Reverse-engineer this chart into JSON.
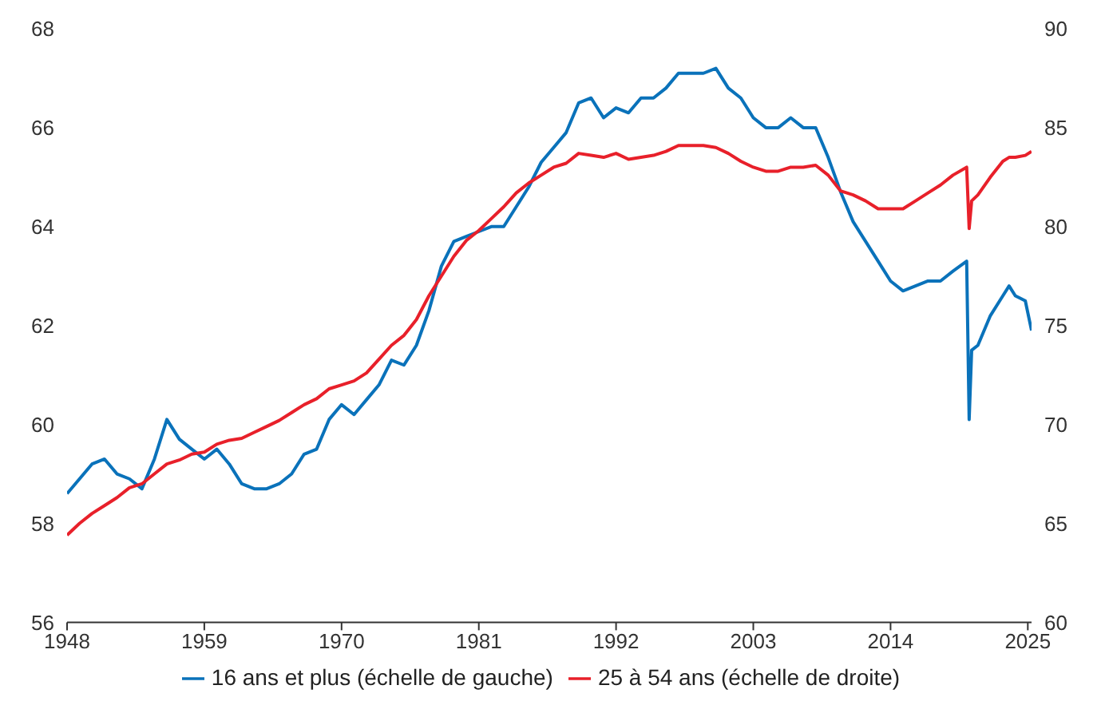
{
  "chart_data": {
    "type": "line",
    "x": [
      1948,
      1949,
      1950,
      1951,
      1952,
      1953,
      1954,
      1955,
      1956,
      1957,
      1958,
      1959,
      1960,
      1961,
      1962,
      1963,
      1964,
      1965,
      1966,
      1967,
      1968,
      1969,
      1970,
      1971,
      1972,
      1973,
      1974,
      1975,
      1976,
      1977,
      1978,
      1979,
      1980,
      1981,
      1982,
      1983,
      1984,
      1985,
      1986,
      1987,
      1988,
      1989,
      1990,
      1991,
      1992,
      1993,
      1994,
      1995,
      1996,
      1997,
      1998,
      1999,
      2000,
      2001,
      2002,
      2003,
      2004,
      2005,
      2006,
      2007,
      2008,
      2009,
      2010,
      2011,
      2012,
      2013,
      2014,
      2015,
      2016,
      2017,
      2018,
      2019,
      2020.1,
      2020.3,
      2020.5,
      2021,
      2022,
      2023,
      2023.5,
      2024,
      2024.8,
      2025.3
    ],
    "series": [
      {
        "name": "16 ans et plus (échelle de gauche)",
        "color": "#0a72ba",
        "values": [
          58.6,
          58.9,
          59.2,
          59.3,
          59.0,
          58.9,
          58.7,
          59.3,
          60.1,
          59.7,
          59.5,
          59.3,
          59.5,
          59.2,
          58.8,
          58.7,
          58.7,
          58.8,
          59.0,
          59.4,
          59.5,
          60.1,
          60.4,
          60.2,
          60.5,
          60.8,
          61.3,
          61.2,
          61.6,
          62.3,
          63.2,
          63.7,
          63.8,
          63.9,
          64.0,
          64.0,
          64.4,
          64.8,
          65.3,
          65.6,
          65.9,
          66.5,
          66.6,
          66.2,
          66.4,
          66.3,
          66.6,
          66.6,
          66.8,
          67.1,
          67.1,
          67.1,
          67.2,
          66.8,
          66.6,
          66.2,
          66.0,
          66.0,
          66.2,
          66.0,
          66.0,
          65.4,
          64.7,
          64.1,
          63.7,
          63.3,
          62.9,
          62.7,
          62.8,
          62.9,
          62.9,
          63.1,
          63.3,
          60.1,
          61.5,
          61.6,
          62.2,
          62.6,
          62.8,
          62.6,
          62.5,
          61.9
        ]
      },
      {
        "name": "25 à 54 ans (échelle de droite)",
        "color": "#e8202a",
        "axis": "y2",
        "values": [
          64.4,
          65.0,
          65.5,
          65.9,
          66.3,
          66.8,
          67.0,
          67.5,
          68.0,
          68.2,
          68.5,
          68.6,
          69.0,
          69.2,
          69.3,
          69.6,
          69.9,
          70.2,
          70.6,
          71.0,
          71.3,
          71.8,
          72.0,
          72.2,
          72.6,
          73.3,
          74.0,
          74.5,
          75.3,
          76.5,
          77.5,
          78.5,
          79.3,
          79.8,
          80.4,
          81.0,
          81.7,
          82.2,
          82.6,
          83.0,
          83.2,
          83.7,
          83.6,
          83.5,
          83.7,
          83.4,
          83.5,
          83.6,
          83.8,
          84.1,
          84.1,
          84.1,
          84.0,
          83.7,
          83.3,
          83.0,
          82.8,
          82.8,
          83.0,
          83.0,
          83.1,
          82.6,
          81.8,
          81.6,
          81.3,
          80.9,
          80.9,
          80.9,
          81.3,
          81.7,
          82.1,
          82.6,
          83.0,
          79.9,
          81.3,
          81.6,
          82.5,
          83.3,
          83.5,
          83.5,
          83.6,
          83.8
        ]
      }
    ],
    "xlim": [
      1948,
      2025.3
    ],
    "xticks": [
      1948,
      1959,
      1970,
      1981,
      1992,
      2003,
      2014,
      2025
    ],
    "ylim": [
      56,
      68
    ],
    "yticks": [
      56,
      58,
      60,
      62,
      64,
      66,
      68
    ],
    "y2lim": [
      60,
      90
    ],
    "y2ticks": [
      60,
      65,
      70,
      75,
      80,
      85,
      90
    ],
    "legend": "bottom",
    "grid": false,
    "marker": "none",
    "line_style": "solid"
  }
}
